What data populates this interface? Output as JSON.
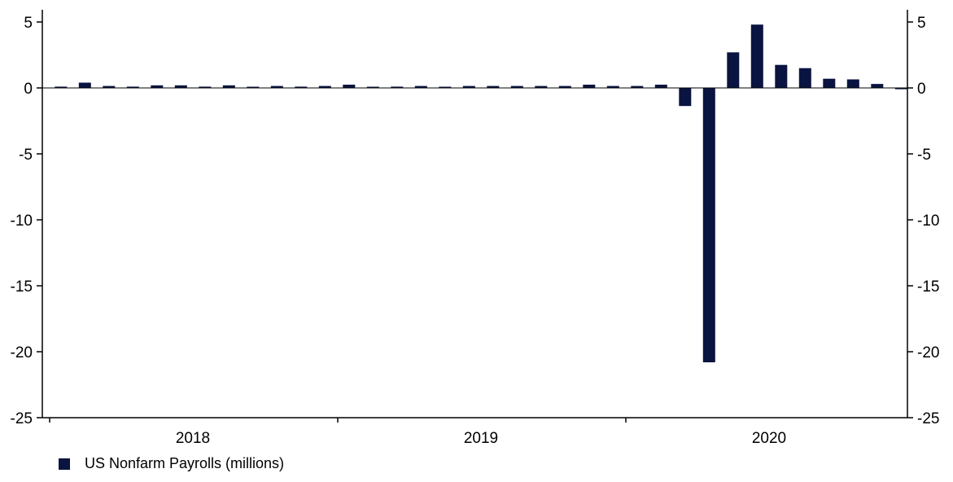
{
  "chart_data": {
    "type": "bar",
    "categories": [
      "Jan 2018",
      "Feb 2018",
      "Mar 2018",
      "Apr 2018",
      "May 2018",
      "Jun 2018",
      "Jul 2018",
      "Aug 2018",
      "Sep 2018",
      "Oct 2018",
      "Nov 2018",
      "Dec 2018",
      "Jan 2019",
      "Feb 2019",
      "Mar 2019",
      "Apr 2019",
      "May 2019",
      "Jun 2019",
      "Jul 2019",
      "Aug 2019",
      "Sep 2019",
      "Oct 2019",
      "Nov 2019",
      "Dec 2019",
      "Jan 2020",
      "Feb 2020",
      "Mar 2020",
      "Apr 2020",
      "May 2020",
      "Jun 2020",
      "Jul 2020",
      "Aug 2020",
      "Sep 2020",
      "Oct 2020",
      "Nov 2020",
      "Dec 2020"
    ],
    "series": [
      {
        "name": "US Nonfarm Payrolls (millions)",
        "color": "#0a1440",
        "values": [
          0.1,
          0.4,
          0.15,
          0.1,
          0.2,
          0.2,
          0.1,
          0.2,
          0.05,
          0.15,
          0.1,
          0.15,
          0.25,
          0.0,
          0.1,
          0.15,
          0.05,
          0.15,
          0.15,
          0.15,
          0.15,
          0.15,
          0.25,
          0.15,
          0.15,
          0.25,
          -1.37,
          -20.8,
          2.7,
          4.8,
          1.75,
          1.5,
          0.7,
          0.65,
          0.3,
          -0.1
        ]
      }
    ],
    "year_labels": [
      "2018",
      "2019",
      "2020"
    ],
    "y_ticks": [
      "5",
      "0",
      "-5",
      "-10",
      "-15",
      "-20",
      "-25"
    ],
    "y_tick_values": [
      5,
      0,
      -5,
      -10,
      -15,
      -20,
      -25
    ],
    "ylim": [
      -25,
      6
    ],
    "grid": false,
    "legend_position": "bottom-left"
  }
}
